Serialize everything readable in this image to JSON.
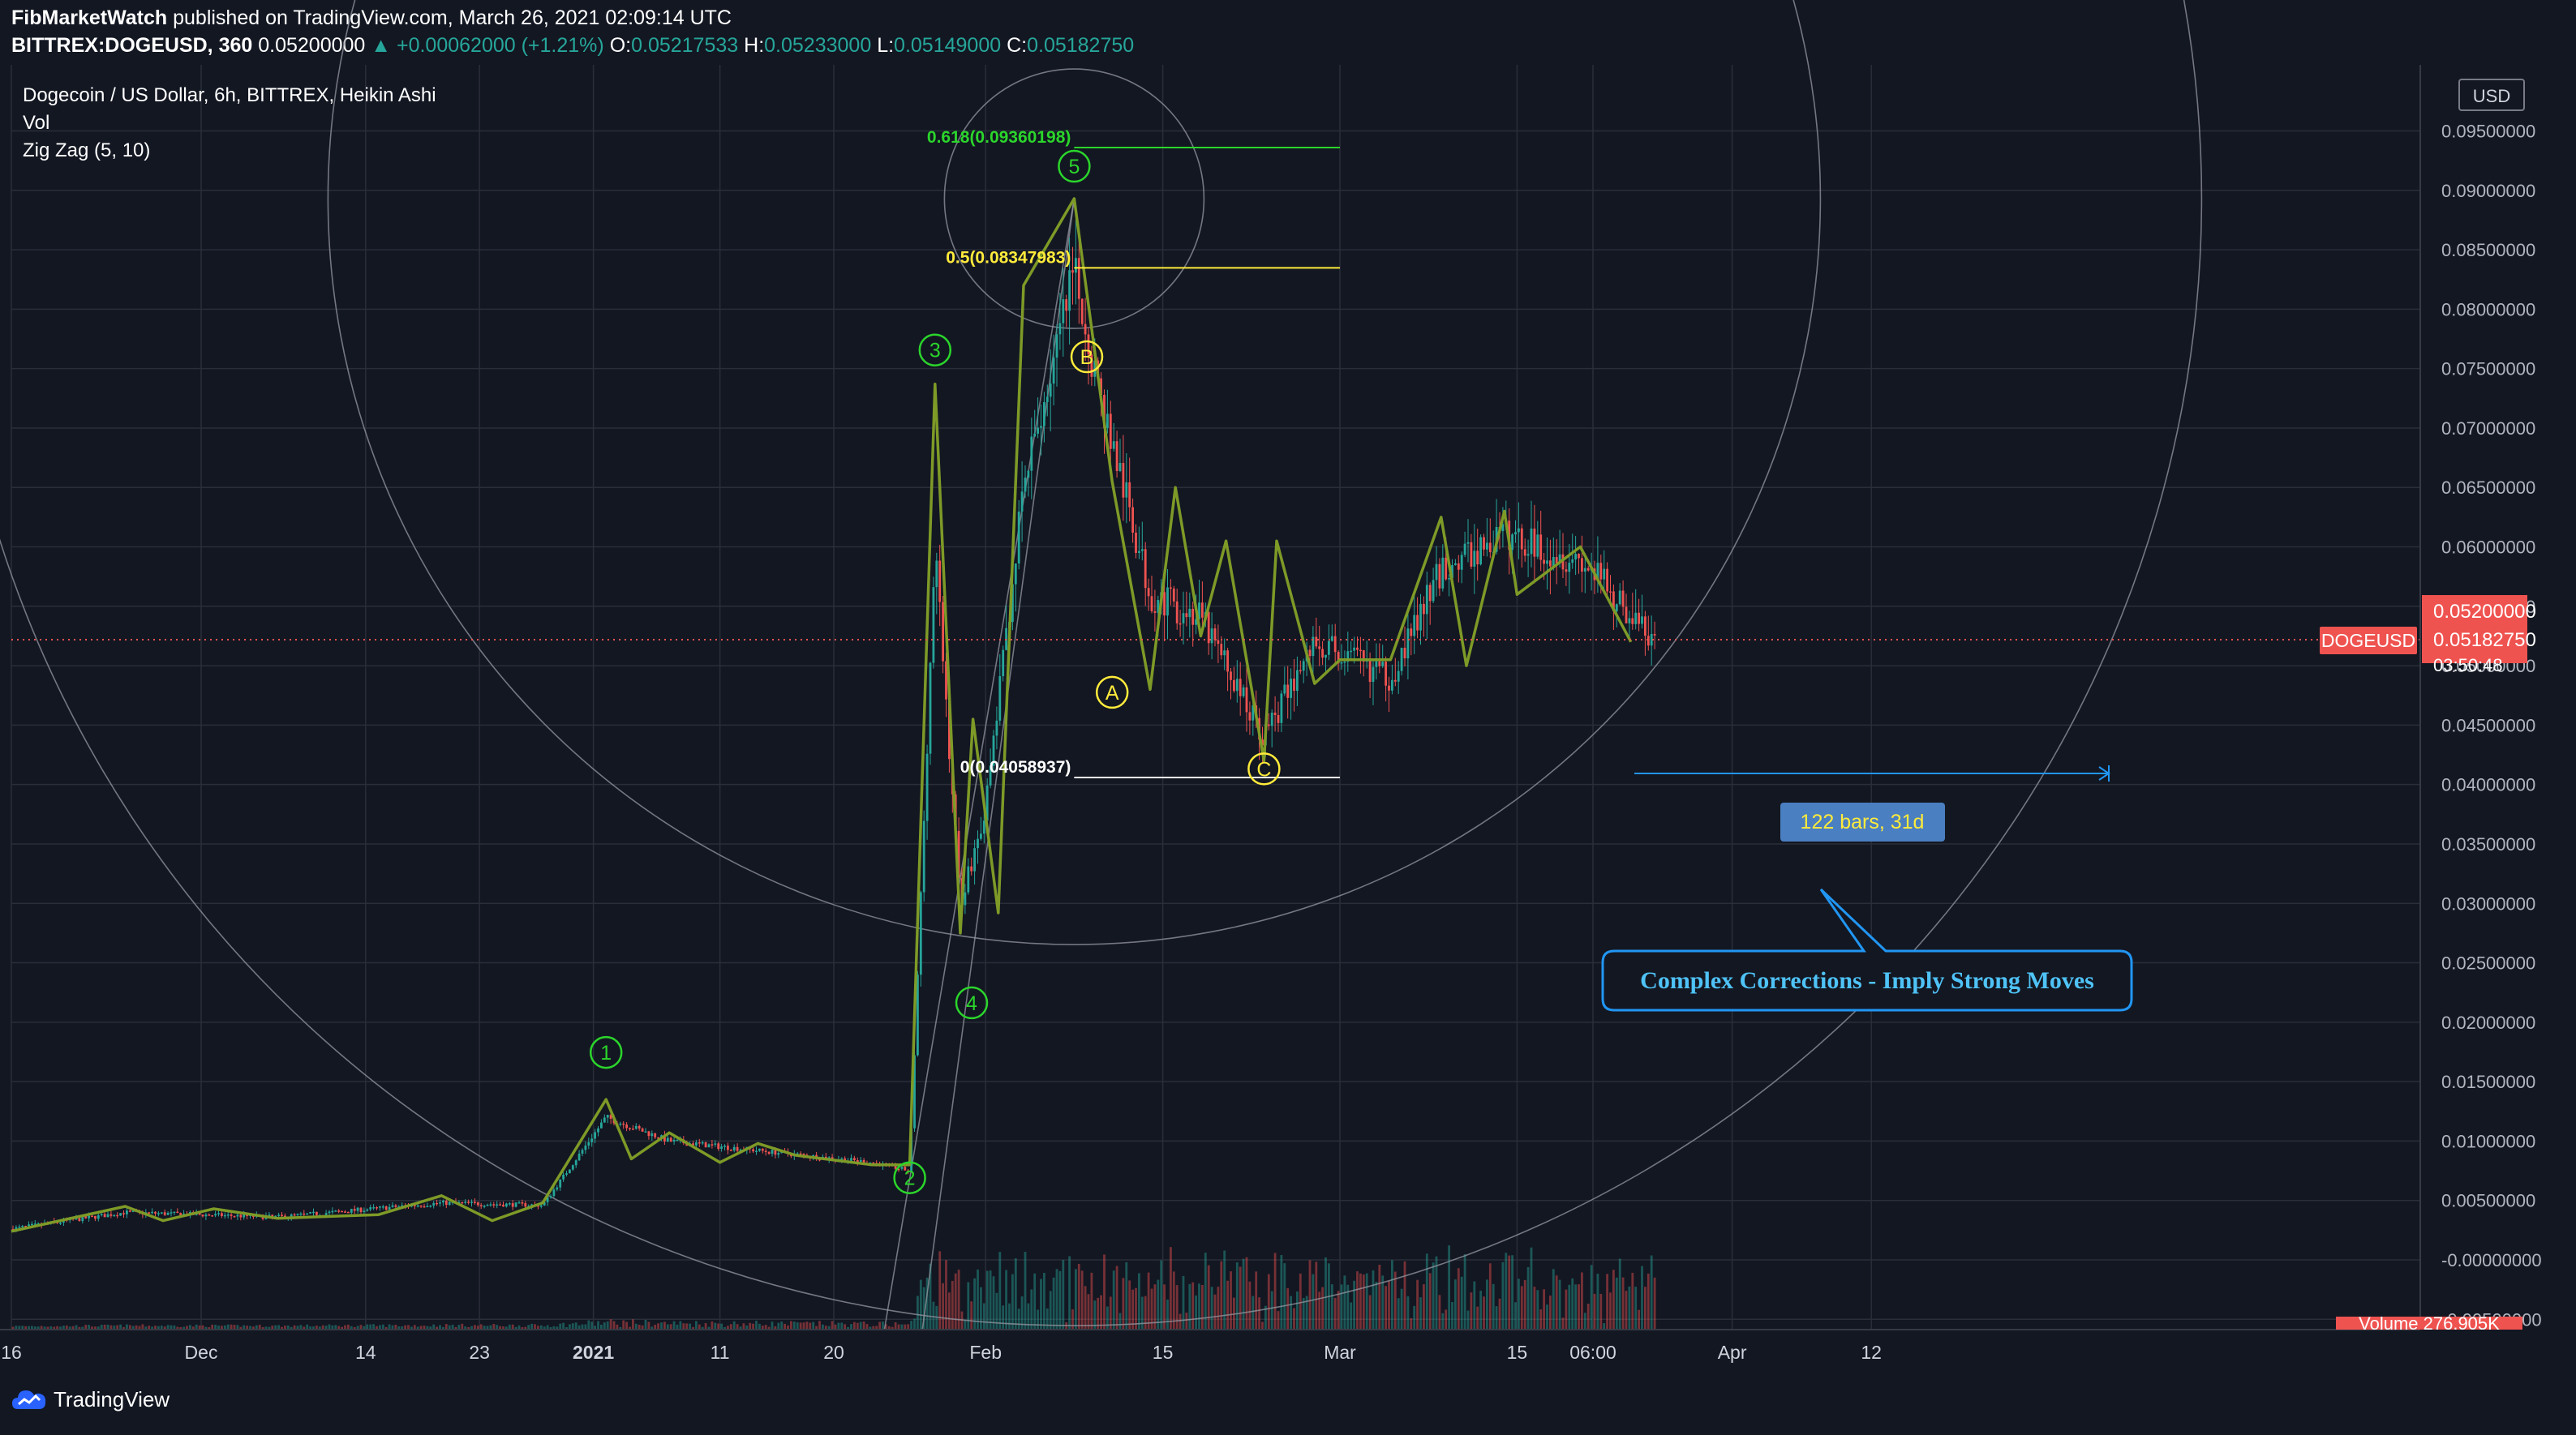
{
  "header": {
    "publisher": "FibMarketWatch",
    "published_text": "published on TradingView.com, March 26, 2021 02:09:14 UTC",
    "symbol": "BITTREX:DOGEUSD, 360",
    "last": "0.05200000",
    "change": "▲ +0.00062000 (+1.21%)",
    "o_label": "O:",
    "o_value": "0.05217533",
    "h_label": "H:",
    "h_value": "0.05233000",
    "l_label": "L:",
    "l_value": "0.05149000",
    "c_label": "C:",
    "c_value": "0.05182750"
  },
  "legend": {
    "title": "Dogecoin / US Dollar, 6h, BITTREX, Heikin Ashi",
    "vol": "Vol",
    "indicator": "Zig Zag (5, 10)"
  },
  "price_axis": {
    "currency": "USD",
    "current_price": "0.05200000",
    "symbol_tag": "DOGEUSD",
    "symbol_price": "0.05182750",
    "countdown": "03:50:48"
  },
  "volume_tag": "Volume  276.905K",
  "footer": {
    "brand": "TradingView"
  },
  "colors": {
    "background": "#131722",
    "grid": "#2a2e39",
    "up": "#26a69a",
    "down": "#ef5350",
    "zigzag": "#7e9a27",
    "fib_green": "#2bd52b",
    "fib_yellow": "#ffeb3b",
    "fib_white": "#ffffff",
    "wave_green": "#2bd52b",
    "wave_yellow": "#ffeb3b",
    "callout": "#2196f3",
    "callout_text": "#4fc3f7"
  },
  "chart_data": {
    "type": "line",
    "chart_style": "Heikin Ashi candlesticks with volume",
    "x_tick_labels": [
      "16",
      "Dec",
      "14",
      "23",
      "2021",
      "11",
      "20",
      "Feb",
      "15",
      "Mar",
      "15",
      "06:00",
      "Apr",
      "12"
    ],
    "y_tick_labels": [
      "0.09500000",
      "0.09000000",
      "0.08500000",
      "0.08000000",
      "0.07500000",
      "0.07000000",
      "0.06500000",
      "0.06000000",
      "0.05500000",
      "0.05000000",
      "0.04500000",
      "0.04000000",
      "0.03500000",
      "0.03000000",
      "0.02500000",
      "0.02000000",
      "0.01500000",
      "0.01000000",
      "0.00500000",
      "-0.00000000",
      "-0.00500000"
    ],
    "ylim": [
      -0.0055,
      0.0975
    ],
    "grid": true,
    "series": [
      {
        "name": "Zig Zag (5, 10)",
        "x": [
          "2020-11-16",
          "2020-11-25",
          "2020-11-28",
          "2020-12-02",
          "2020-12-07",
          "2020-12-15",
          "2020-12-20",
          "2020-12-24",
          "2020-12-28",
          "2021-01-02",
          "2021-01-04",
          "2021-01-07",
          "2021-01-11",
          "2021-01-14",
          "2021-01-17",
          "2021-01-23",
          "2021-01-26",
          "2021-01-28",
          "2021-01-30",
          "2021-01-31",
          "2021-02-02",
          "2021-02-04",
          "2021-02-08",
          "2021-02-11",
          "2021-02-14",
          "2021-02-16",
          "2021-02-18",
          "2021-02-20",
          "2021-02-23",
          "2021-02-24",
          "2021-02-27",
          "2021-03-01",
          "2021-03-05",
          "2021-03-09",
          "2021-03-11",
          "2021-03-14",
          "2021-03-15",
          "2021-03-20",
          "2021-03-24"
        ],
        "y": [
          0.0024,
          0.0045,
          0.0033,
          0.0043,
          0.0035,
          0.0038,
          0.0054,
          0.0033,
          0.0048,
          0.0135,
          0.0085,
          0.0107,
          0.0082,
          0.0098,
          0.0088,
          0.008,
          0.008,
          0.0737,
          0.0275,
          0.0455,
          0.0292,
          0.082,
          0.0893,
          0.0655,
          0.048,
          0.065,
          0.0525,
          0.0605,
          0.042,
          0.0605,
          0.0485,
          0.0505,
          0.0505,
          0.0625,
          0.05,
          0.063,
          0.056,
          0.06,
          0.052
        ]
      },
      {
        "name": "Close",
        "x": [
          "2020-11-16",
          "2020-11-25",
          "2020-12-07",
          "2020-12-20",
          "2020-12-28",
          "2021-01-02",
          "2021-01-07",
          "2021-01-14",
          "2021-01-23",
          "2021-01-26",
          "2021-01-28",
          "2021-01-30",
          "2021-02-01",
          "2021-02-04",
          "2021-02-08",
          "2021-02-10",
          "2021-02-14",
          "2021-02-18",
          "2021-02-23",
          "2021-02-27",
          "2021-03-05",
          "2021-03-09",
          "2021-03-14",
          "2021-03-20",
          "2021-03-26"
        ],
        "y": [
          0.0026,
          0.004,
          0.0036,
          0.0048,
          0.0046,
          0.012,
          0.01,
          0.0092,
          0.0082,
          0.0075,
          0.06,
          0.03,
          0.038,
          0.065,
          0.083,
          0.073,
          0.056,
          0.054,
          0.044,
          0.052,
          0.049,
          0.058,
          0.061,
          0.059,
          0.0518
        ]
      }
    ],
    "annotations": {
      "fib_levels": [
        {
          "label": "0.618(0.09360198)",
          "value": 0.09360198
        },
        {
          "label": "0.5(0.08347983)",
          "value": 0.08347983
        },
        {
          "label": "0(0.04058937)",
          "value": 0.04058937
        }
      ],
      "waves": [
        {
          "label": "1",
          "x": "2021-01-02",
          "y": 0.0135
        },
        {
          "label": "2",
          "x": "2021-01-26",
          "y": 0.008
        },
        {
          "label": "3",
          "x": "2021-01-28",
          "y": 0.0737
        },
        {
          "label": "4",
          "x": "2021-01-30",
          "y": 0.0275
        },
        {
          "label": "5",
          "x": "2021-02-08",
          "y": 0.0893
        },
        {
          "label": "A",
          "x": "2021-02-11",
          "y": 0.0655
        },
        {
          "label": "B",
          "x": "2021-02-09",
          "y": 0.0835
        },
        {
          "label": "C",
          "x": "2021-02-23",
          "y": 0.042
        }
      ],
      "range_label": "122 bars, 31d",
      "callout": "Complex Corrections - Imply Strong Moves"
    }
  }
}
